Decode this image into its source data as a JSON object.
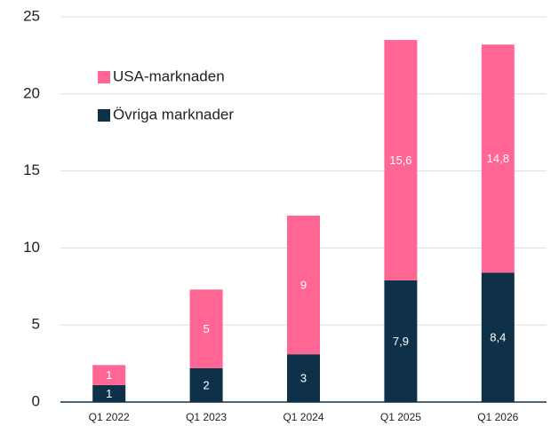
{
  "chart_data": {
    "type": "stacked_bar",
    "categories": [
      "Q1 2022",
      "Q1 2023",
      "Q1 2024",
      "Q1 2025",
      "Q1 2026"
    ],
    "series": [
      {
        "name": "Övriga marknader",
        "color": "#0f3049",
        "values": [
          1.1,
          2.2,
          3.1,
          7.9,
          8.4
        ],
        "value_labels": [
          "1",
          "2",
          "3",
          "7,9",
          "8,4"
        ]
      },
      {
        "name": "USA-marknaden",
        "color": "#ff6693",
        "values": [
          1.3,
          5.1,
          9.0,
          15.6,
          14.8
        ],
        "value_labels": [
          "1",
          "5",
          "9",
          "15,6",
          "14,8"
        ]
      }
    ],
    "ylim": [
      0,
      25
    ],
    "yticks": [
      0,
      5,
      10,
      15,
      20,
      25
    ],
    "grid": true,
    "legend": "upper left"
  }
}
